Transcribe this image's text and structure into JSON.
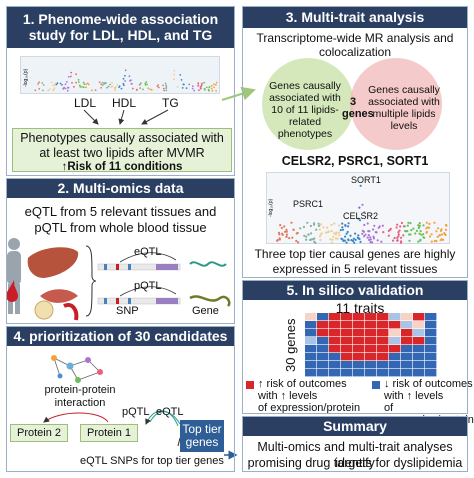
{
  "panel1": {
    "title": "1. Phenome-wide association study for LDL, HDL, and TG",
    "mini_ylabel": "-log₁₀(p)",
    "lipids": [
      "LDL",
      "HDL",
      "TG"
    ],
    "box_line1": "Phenotypes causally associated with",
    "box_line2": "at least two lipids after MVMR",
    "box_line3": "↑Risk of 11 conditions",
    "colors": {
      "header": "#2b3f63",
      "green_box": "#e6f2d8"
    }
  },
  "panel2": {
    "title": "2. Multi-omics data",
    "line1": "eQTL from 5 relevant tissues and",
    "line2": "pQTL from whole blood tissue",
    "eqtl": "eQTL",
    "pqtl": "pQTL",
    "snp": "SNP",
    "gene": "Gene"
  },
  "panel3": {
    "title": "3. Multi-trait analysis",
    "subtitle1": "Transcriptome-wide MR analysis and",
    "subtitle2": "colocalization",
    "venn_left": "Genes causally associated with 10 of 11 lipids-related phenotypes",
    "venn_right": "Genes causally associated with multiple lipids levels",
    "venn_center": "3 genes",
    "genes": "CELSR2, PSRC1, SORT1",
    "manhattan_ylabel": "-log₁₀(p)",
    "label_sort1": "SORT1",
    "label_psrc1": "PSRC1",
    "label_celsr2": "CELSR2",
    "note1": "Three top tier causal genes are highly",
    "note2": "expressed in 5 relevant tissues",
    "colors": {
      "venn_left": "#cfe6b4",
      "venn_right": "#f2b8b8"
    }
  },
  "panel4": {
    "title": "4. prioritization of 30 candidates",
    "ppi1": "protein-protein",
    "ppi2": "interaction",
    "protein1": "Protein 1",
    "protein2": "Protein 2",
    "pqtl": "pQTL",
    "eqtl": "eQTL",
    "top_tier": "Top tier genes",
    "snps_note": "eQTL SNPs for top tier genes"
  },
  "panel5": {
    "title": "5. In silico validation",
    "traits": "11 traits",
    "genes_label": "30 genes",
    "legend_red1": "↑ risk of outcomes",
    "legend_red2": "with ↑ levels",
    "legend_red3": "of expression/protein",
    "legend_blue1": "↓ risk of outcomes",
    "legend_blue2": "with ↑ levels",
    "legend_blue3": "of expression/protein",
    "colors": {
      "red": "#d9262b",
      "blue": "#3366b3",
      "light_blue": "#a9c4e6",
      "pale": "#f7d3c7"
    }
  },
  "summary": {
    "title": "Summary",
    "line1": "Multi-omics and multi-trait analyses identify",
    "line2": "promising drug targets for dyslipidemia"
  }
}
